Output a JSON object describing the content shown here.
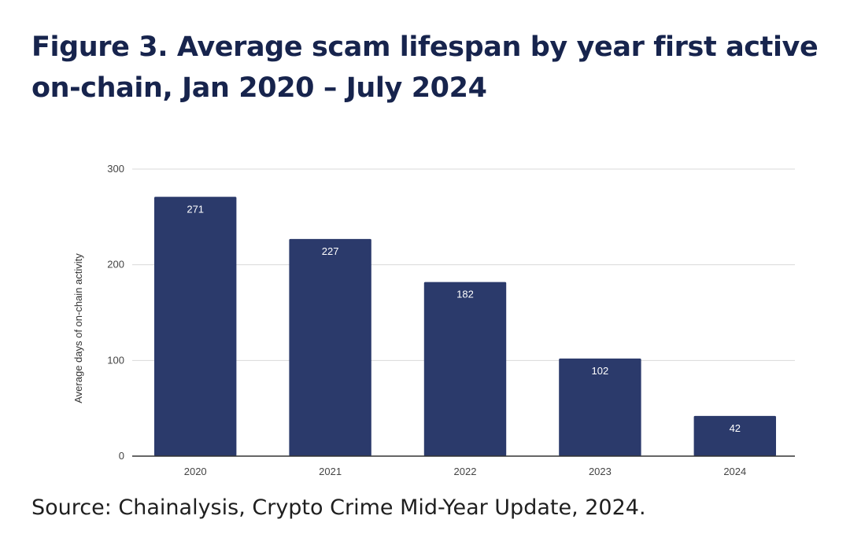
{
  "title": "Figure 3. Average scam lifespan by year first active on-chain, Jan 2020 – July 2024",
  "source": "Source: Chainalysis, Crypto Crime Mid-Year Update, 2024.",
  "chart_data": {
    "type": "bar",
    "categories": [
      "2020",
      "2021",
      "2022",
      "2023",
      "2024"
    ],
    "values": [
      271,
      227,
      182,
      102,
      42
    ],
    "ylabel": "Average days of on-chain activity",
    "xlabel": "",
    "ylim": [
      0,
      300
    ],
    "yticks": [
      0,
      100,
      200,
      300
    ],
    "grid": true,
    "bar_color": "#2b3a6b",
    "data_labels": true
  }
}
